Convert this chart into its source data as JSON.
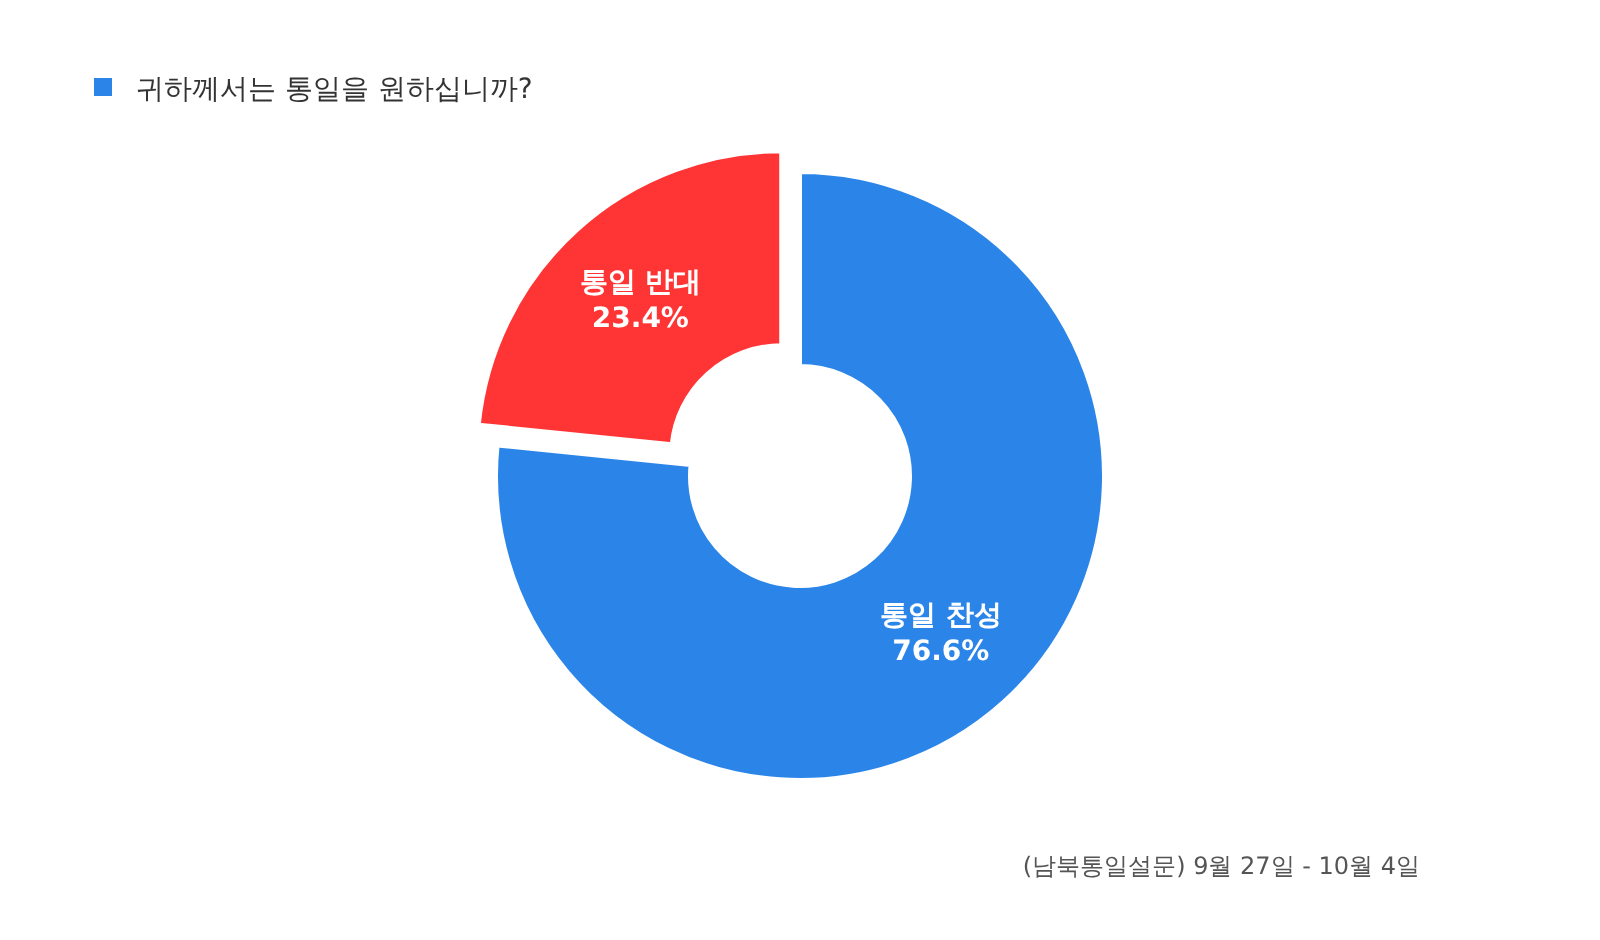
{
  "chart_data": {
    "type": "donut",
    "title": "귀하께서는 통일을 원하십니까?",
    "categories": [
      "통일 찬성",
      "통일 반대"
    ],
    "values": [
      76.6,
      23.4
    ],
    "colors": [
      "#2b85e9",
      "#ff3434"
    ],
    "value_labels": [
      "76.6%",
      "23.4%"
    ],
    "annotations": [
      "(남북통일설문) 9월 27일 - 10월 4일"
    ]
  }
}
